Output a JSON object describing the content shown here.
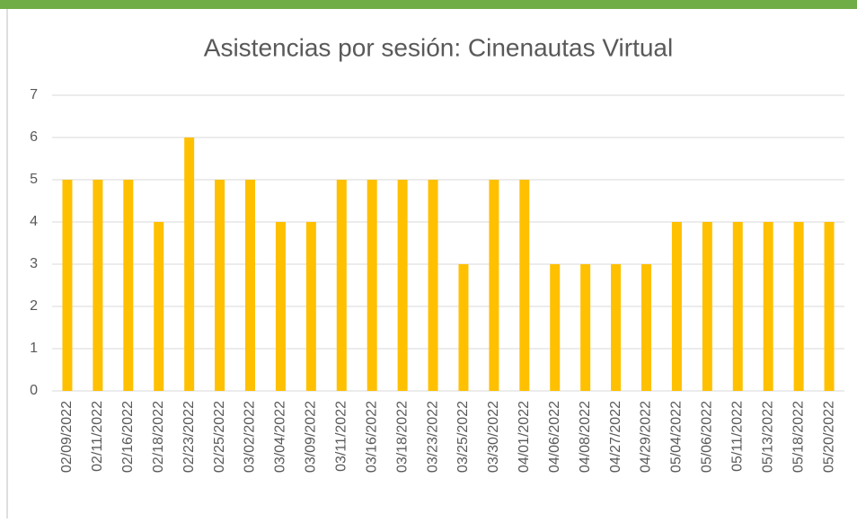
{
  "chart_data": {
    "type": "bar",
    "title": "Asistencias por sesión: Cinenautas Virtual",
    "categories": [
      "02/09/2022",
      "02/11/2022",
      "02/16/2022",
      "02/18/2022",
      "02/23/2022",
      "02/25/2022",
      "03/02/2022",
      "03/04/2022",
      "03/09/2022",
      "03/11/2022",
      "03/16/2022",
      "03/18/2022",
      "03/23/2022",
      "03/25/2022",
      "03/30/2022",
      "04/01/2022",
      "04/06/2022",
      "04/08/2022",
      "04/27/2022",
      "04/29/2022",
      "05/04/2022",
      "05/06/2022",
      "05/11/2022",
      "05/13/2022",
      "05/18/2022",
      "05/20/2022"
    ],
    "values": [
      5,
      5,
      5,
      4,
      6,
      5,
      5,
      4,
      4,
      5,
      5,
      5,
      5,
      3,
      5,
      5,
      3,
      3,
      3,
      3,
      4,
      4,
      4,
      4,
      4,
      4
    ],
    "color": "#ffc000",
    "ylim": [
      0,
      7
    ],
    "yticks": [
      0,
      1,
      2,
      3,
      4,
      5,
      6,
      7
    ],
    "grid": true
  }
}
